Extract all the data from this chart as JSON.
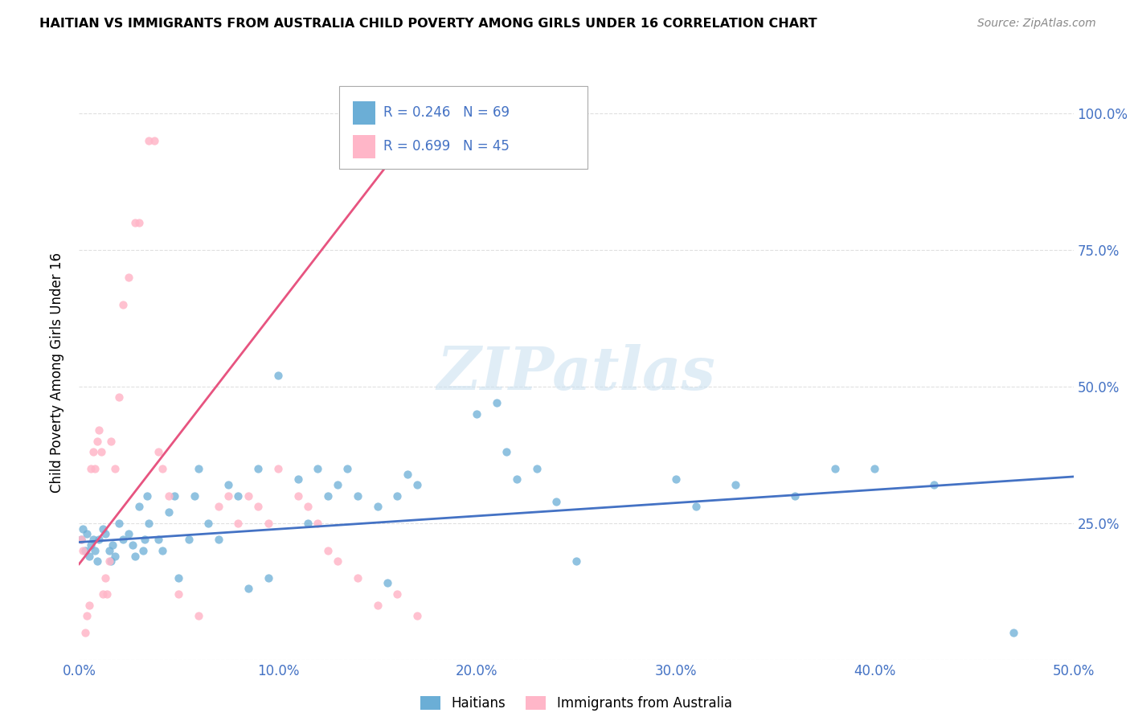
{
  "title": "HAITIAN VS IMMIGRANTS FROM AUSTRALIA CHILD POVERTY AMONG GIRLS UNDER 16 CORRELATION CHART",
  "source": "Source: ZipAtlas.com",
  "ylabel": "Child Poverty Among Girls Under 16",
  "xlim": [
    0.0,
    0.5
  ],
  "ylim": [
    0.0,
    1.05
  ],
  "yticks": [
    0.25,
    0.5,
    0.75,
    1.0
  ],
  "ytick_labels": [
    "25.0%",
    "50.0%",
    "75.0%",
    "100.0%"
  ],
  "xticks": [
    0.0,
    0.1,
    0.2,
    0.3,
    0.4,
    0.5
  ],
  "xtick_labels": [
    "0.0%",
    "10.0%",
    "20.0%",
    "30.0%",
    "40.0%",
    "50.0%"
  ],
  "legend_blue_R": "R = 0.246",
  "legend_blue_N": "N = 69",
  "legend_pink_R": "R = 0.699",
  "legend_pink_N": "N = 45",
  "legend_label_blue": "Haitians",
  "legend_label_pink": "Immigrants from Australia",
  "blue_color": "#6baed6",
  "pink_color": "#ffb6c8",
  "trendline_blue_color": "#4472c4",
  "trendline_pink_color": "#e75480",
  "label_color": "#4472c4",
  "watermark": "ZIPatlas",
  "blue_x": [
    0.001,
    0.002,
    0.003,
    0.004,
    0.005,
    0.006,
    0.007,
    0.008,
    0.009,
    0.01,
    0.012,
    0.013,
    0.015,
    0.016,
    0.017,
    0.018,
    0.02,
    0.022,
    0.025,
    0.027,
    0.028,
    0.03,
    0.032,
    0.033,
    0.034,
    0.035,
    0.04,
    0.042,
    0.045,
    0.048,
    0.05,
    0.055,
    0.058,
    0.06,
    0.065,
    0.07,
    0.075,
    0.08,
    0.085,
    0.09,
    0.095,
    0.1,
    0.11,
    0.115,
    0.12,
    0.125,
    0.13,
    0.135,
    0.14,
    0.15,
    0.155,
    0.16,
    0.165,
    0.17,
    0.2,
    0.21,
    0.215,
    0.22,
    0.23,
    0.24,
    0.25,
    0.3,
    0.31,
    0.33,
    0.36,
    0.38,
    0.4,
    0.43,
    0.47
  ],
  "blue_y": [
    0.22,
    0.24,
    0.2,
    0.23,
    0.19,
    0.21,
    0.22,
    0.2,
    0.18,
    0.22,
    0.24,
    0.23,
    0.2,
    0.18,
    0.21,
    0.19,
    0.25,
    0.22,
    0.23,
    0.21,
    0.19,
    0.28,
    0.2,
    0.22,
    0.3,
    0.25,
    0.22,
    0.2,
    0.27,
    0.3,
    0.15,
    0.22,
    0.3,
    0.35,
    0.25,
    0.22,
    0.32,
    0.3,
    0.13,
    0.35,
    0.15,
    0.52,
    0.33,
    0.25,
    0.35,
    0.3,
    0.32,
    0.35,
    0.3,
    0.28,
    0.14,
    0.3,
    0.34,
    0.32,
    0.45,
    0.47,
    0.38,
    0.33,
    0.35,
    0.29,
    0.18,
    0.33,
    0.28,
    0.32,
    0.3,
    0.35,
    0.35,
    0.32,
    0.05
  ],
  "pink_x": [
    0.001,
    0.002,
    0.003,
    0.004,
    0.005,
    0.006,
    0.007,
    0.008,
    0.009,
    0.01,
    0.011,
    0.012,
    0.013,
    0.014,
    0.015,
    0.016,
    0.018,
    0.02,
    0.022,
    0.025,
    0.028,
    0.03,
    0.035,
    0.038,
    0.04,
    0.042,
    0.045,
    0.05,
    0.06,
    0.07,
    0.075,
    0.08,
    0.085,
    0.09,
    0.095,
    0.1,
    0.11,
    0.115,
    0.12,
    0.125,
    0.13,
    0.14,
    0.15,
    0.16,
    0.17
  ],
  "pink_y": [
    0.22,
    0.2,
    0.05,
    0.08,
    0.1,
    0.35,
    0.38,
    0.35,
    0.4,
    0.42,
    0.38,
    0.12,
    0.15,
    0.12,
    0.18,
    0.4,
    0.35,
    0.48,
    0.65,
    0.7,
    0.8,
    0.8,
    0.95,
    0.95,
    0.38,
    0.35,
    0.3,
    0.12,
    0.08,
    0.28,
    0.3,
    0.25,
    0.3,
    0.28,
    0.25,
    0.35,
    0.3,
    0.28,
    0.25,
    0.2,
    0.18,
    0.15,
    0.1,
    0.12,
    0.08
  ],
  "blue_trend_x": [
    0.0,
    0.5
  ],
  "blue_trend_y": [
    0.215,
    0.335
  ],
  "pink_trend_x": [
    0.0,
    0.175
  ],
  "pink_trend_y": [
    0.175,
    1.0
  ]
}
